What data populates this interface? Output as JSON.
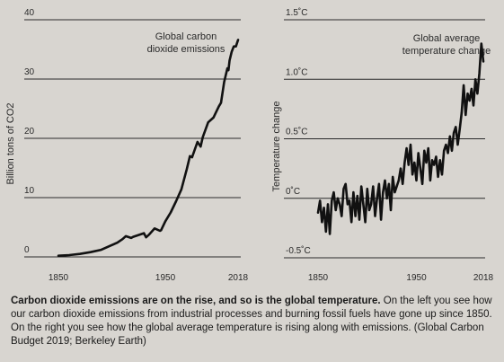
{
  "chart_data": [
    {
      "type": "line",
      "annotation": [
        "Global carbon",
        "dioxide emissions"
      ],
      "xlabel": "",
      "ylabel": "Billion tons of CO2",
      "ylim": [
        0,
        40
      ],
      "yticks": [
        "0",
        "10",
        "20",
        "30",
        "40"
      ],
      "xticks": [
        "1850",
        "1950",
        "2018"
      ],
      "xlim": [
        1850,
        2018
      ],
      "grid": true,
      "series": [
        {
          "x": [
            1850,
            1860,
            1870,
            1880,
            1890,
            1900,
            1905,
            1910,
            1913,
            1918,
            1920,
            1925,
            1930,
            1932,
            1935,
            1940,
            1945,
            1946,
            1950,
            1955,
            1960,
            1965,
            1970,
            1973,
            1975,
            1980,
            1983,
            1985,
            1990,
            1995,
            2000,
            2002,
            2005,
            2008,
            2009,
            2010,
            2012,
            2014,
            2016,
            2018
          ],
          "y": [
            0.2,
            0.3,
            0.5,
            0.8,
            1.2,
            2.0,
            2.4,
            3.0,
            3.5,
            3.2,
            3.4,
            3.7,
            4.0,
            3.3,
            3.8,
            4.8,
            4.4,
            4.5,
            6.0,
            7.5,
            9.4,
            11.4,
            14.8,
            17.0,
            16.8,
            19.4,
            18.6,
            20.2,
            22.7,
            23.5,
            25.4,
            26.0,
            29.5,
            31.8,
            31.5,
            33.1,
            34.6,
            35.5,
            35.5,
            36.6
          ]
        }
      ]
    },
    {
      "type": "line",
      "annotation": [
        "Global average",
        "temperature change"
      ],
      "xlabel": "",
      "ylabel": "Temperature change",
      "ylim": [
        -0.5,
        1.5
      ],
      "yticks": [
        "-0.5˚C",
        "0˚C",
        "0.5˚C",
        "1.0˚C",
        "1.5˚C"
      ],
      "xticks": [
        "1850",
        "1950",
        "2018"
      ],
      "xlim": [
        1850,
        2018
      ],
      "grid": true,
      "series": [
        {
          "x": [
            1850,
            1852,
            1854,
            1856,
            1858,
            1860,
            1862,
            1864,
            1866,
            1868,
            1870,
            1872,
            1874,
            1876,
            1878,
            1880,
            1882,
            1884,
            1886,
            1888,
            1890,
            1892,
            1894,
            1896,
            1898,
            1900,
            1902,
            1904,
            1906,
            1908,
            1910,
            1912,
            1914,
            1916,
            1918,
            1920,
            1922,
            1924,
            1926,
            1928,
            1930,
            1932,
            1934,
            1936,
            1938,
            1940,
            1942,
            1944,
            1946,
            1948,
            1950,
            1952,
            1954,
            1956,
            1958,
            1960,
            1962,
            1964,
            1966,
            1968,
            1970,
            1972,
            1974,
            1976,
            1978,
            1980,
            1982,
            1984,
            1986,
            1988,
            1990,
            1992,
            1994,
            1996,
            1998,
            2000,
            2002,
            2004,
            2006,
            2008,
            2010,
            2012,
            2014,
            2016,
            2018
          ],
          "y": [
            -0.12,
            -0.02,
            -0.2,
            -0.08,
            -0.28,
            -0.05,
            -0.3,
            -0.02,
            0.05,
            -0.1,
            0.0,
            -0.05,
            -0.15,
            0.08,
            0.12,
            -0.05,
            -0.02,
            -0.2,
            0.05,
            -0.15,
            0.02,
            -0.18,
            0.1,
            -0.05,
            -0.2,
            0.08,
            -0.1,
            -0.05,
            0.1,
            -0.15,
            0.0,
            0.12,
            -0.18,
            0.05,
            0.15,
            0.0,
            0.12,
            -0.1,
            0.18,
            0.05,
            0.1,
            0.15,
            0.25,
            0.12,
            0.3,
            0.42,
            0.28,
            0.45,
            0.2,
            0.3,
            0.15,
            0.38,
            0.25,
            0.12,
            0.4,
            0.3,
            0.42,
            0.15,
            0.32,
            0.28,
            0.35,
            0.18,
            0.32,
            0.2,
            0.4,
            0.45,
            0.38,
            0.52,
            0.4,
            0.55,
            0.6,
            0.45,
            0.58,
            0.72,
            0.95,
            0.7,
            0.88,
            0.82,
            0.92,
            0.78,
            1.0,
            0.88,
            1.05,
            1.3,
            1.15
          ]
        }
      ]
    }
  ],
  "caption": {
    "bold": "Carbon dioxide emissions are on the rise, and so is the global temperature.",
    "body": "On the left you see how our carbon dioxide emissions from industrial processes and burning fossil fuels have gone up since 1850. On the right you see how the global average temperature is rising along with emissions. (Global Carbon Budget 2019; Berkeley Earth)"
  },
  "colors": {
    "line": "#111111",
    "background": "#d8d5d0"
  }
}
